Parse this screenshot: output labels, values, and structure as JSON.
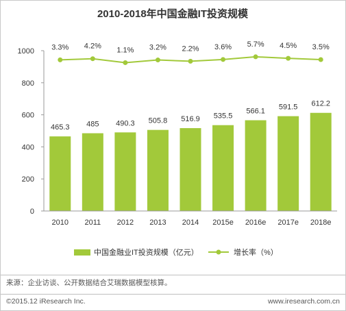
{
  "chart_data": {
    "type": "bar",
    "title": "2010-2018年中国金融IT投资规模",
    "categories": [
      "2010",
      "2011",
      "2012",
      "2013",
      "2014",
      "2015e",
      "2016e",
      "2017e",
      "2018e"
    ],
    "series": [
      {
        "name": "中国金融业IT投资规模（亿元）",
        "type": "bar",
        "values": [
          465.3,
          485,
          490.3,
          505.8,
          516.9,
          535.5,
          566.1,
          591.5,
          612.2
        ],
        "labels": [
          "465.3",
          "485",
          "490.3",
          "505.8",
          "516.9",
          "535.5",
          "566.1",
          "591.5",
          "612.2"
        ]
      },
      {
        "name": "增长率（%）",
        "type": "line",
        "values": [
          3.3,
          4.2,
          1.1,
          3.2,
          2.2,
          3.6,
          5.7,
          4.5,
          3.5
        ],
        "labels": [
          "3.3%",
          "4.2%",
          "1.1%",
          "3.2%",
          "2.2%",
          "3.6%",
          "5.7%",
          "4.5%",
          "3.5%"
        ]
      }
    ],
    "ylim": [
      0,
      1000
    ],
    "yticks": [
      0,
      200,
      400,
      600,
      800,
      1000
    ],
    "grid": false,
    "legend": "bottom",
    "colors": {
      "bar": "#a2c93a",
      "line": "#a2c93a",
      "text": "#333333"
    }
  },
  "footer": {
    "source": "来源：企业访谈、公开数据结合艾瑞数据模型核算。",
    "copyright": "©2015.12 iResearch Inc.",
    "website": "www.iresearch.com.cn"
  }
}
